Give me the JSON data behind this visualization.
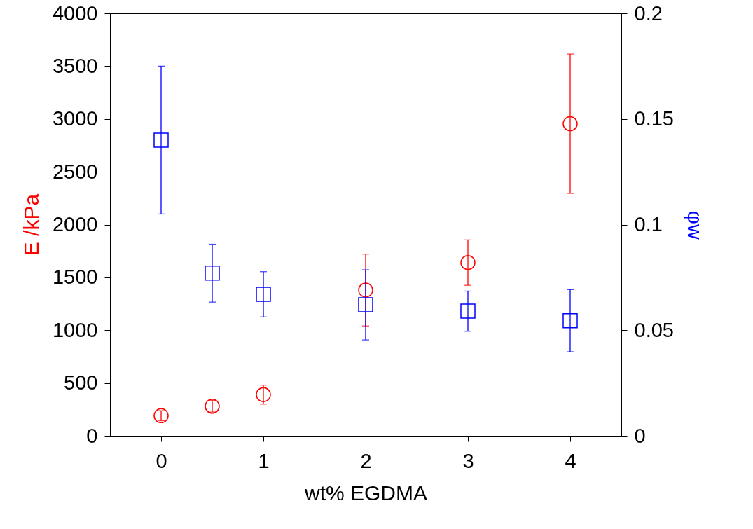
{
  "chart_data": {
    "type": "scatter",
    "xlabel": "wt% EGDMA",
    "ylabel": "E /kPa",
    "y2label": "φw",
    "xlim": [
      -0.5,
      4.5
    ],
    "xticks": [
      0,
      1,
      2,
      3,
      4
    ],
    "ylim": [
      0,
      4000
    ],
    "yticks": [
      0,
      500,
      1000,
      1500,
      2000,
      2500,
      3000,
      3500,
      4000
    ],
    "y2lim": [
      0,
      0.2
    ],
    "y2ticks": [
      0,
      0.05,
      0.1,
      0.15,
      0.2
    ],
    "grid": false,
    "series": [
      {
        "color": "#ff0000",
        "marker": "circle",
        "x": [
          0,
          0.5,
          1,
          2,
          3,
          4
        ],
        "values": [
          190,
          280,
          390,
          1380,
          1640,
          2955
        ],
        "errors": [
          48,
          55,
          90,
          340,
          215,
          660
        ]
      },
      {
        "color": "#0000ff",
        "marker": "square",
        "axis": "y2",
        "x": [
          0,
          0.5,
          1,
          2,
          3,
          4
        ],
        "values": [
          0.14,
          0.077,
          0.067,
          0.062,
          0.059,
          0.0545
        ],
        "errors": [
          0.035,
          0.0137,
          0.0107,
          0.0166,
          0.0095,
          0.0147
        ]
      }
    ]
  }
}
